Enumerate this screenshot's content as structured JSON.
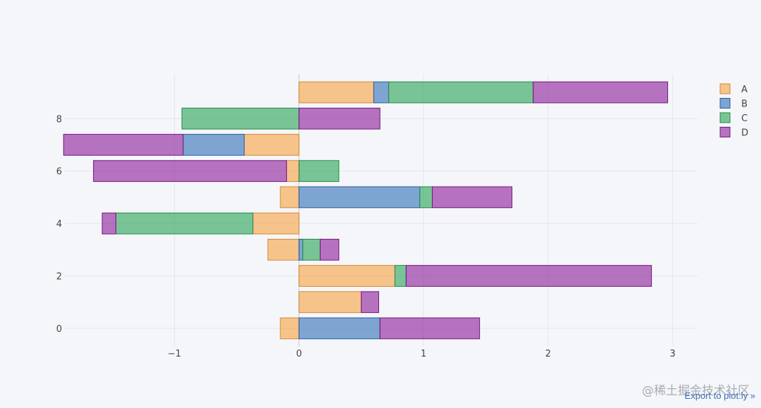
{
  "chart_data": {
    "type": "bar",
    "orientation": "horizontal",
    "barmode": "relative",
    "xlim": [
      -1.88,
      3.2
    ],
    "ylim": [
      -0.7,
      9.7
    ],
    "xticks": [
      -1,
      0,
      1,
      2,
      3
    ],
    "xtick_labels": [
      "−1",
      "0",
      "1",
      "2",
      "3"
    ],
    "yticks": [
      0,
      2,
      4,
      6,
      8
    ],
    "ytick_labels": [
      "0",
      "2",
      "4",
      "6",
      "8"
    ],
    "categories": [
      0,
      1,
      2,
      3,
      4,
      5,
      6,
      7,
      8,
      9
    ],
    "series": [
      {
        "name": "A",
        "color": "#f7a240",
        "values": [
          -0.15,
          0.5,
          0.77,
          -0.25,
          -0.37,
          -0.15,
          -0.1,
          -0.44,
          0.0,
          0.6
        ]
      },
      {
        "name": "B",
        "color": "#2f6fb8",
        "values": [
          0.65,
          0.0,
          0.0,
          0.03,
          0.0,
          0.97,
          0.0,
          -0.49,
          0.0,
          0.12
        ]
      },
      {
        "name": "C",
        "color": "#27a354",
        "values": [
          0.0,
          0.0,
          0.09,
          0.14,
          -1.1,
          0.1,
          0.32,
          0.0,
          -0.94,
          1.16
        ]
      },
      {
        "name": "D",
        "color": "#8b1a97",
        "values": [
          0.8,
          0.14,
          1.97,
          0.15,
          -0.11,
          0.64,
          -1.55,
          -0.96,
          0.65,
          1.08
        ]
      }
    ]
  },
  "export_link": "Export to plot.ly »",
  "watermark": "@稀土掘金技术社区"
}
